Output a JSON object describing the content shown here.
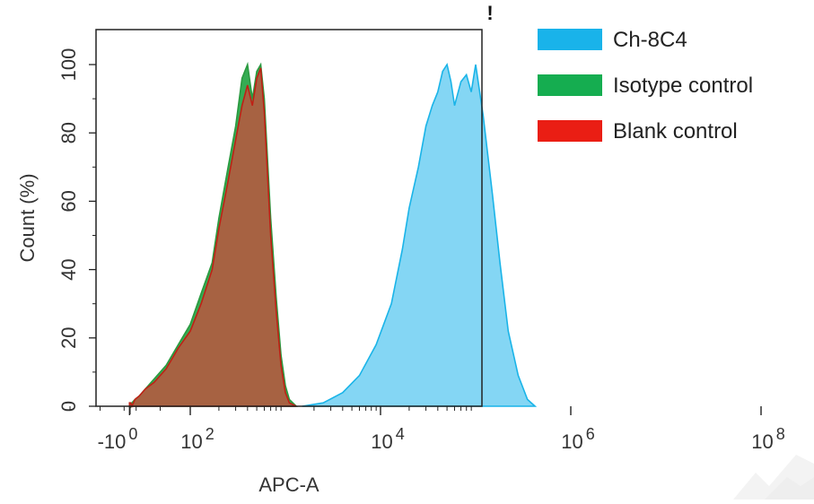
{
  "chart_data": {
    "type": "area",
    "title": "",
    "xlabel": "APC-A",
    "ylabel": "Count (%)",
    "x_scale": "log",
    "xlim": [
      -1,
      100000000
    ],
    "ylim": [
      0,
      105
    ],
    "x_tick_labels": [
      {
        "base": "-10",
        "exp": "0",
        "value": -1
      },
      {
        "base": "10",
        "exp": "2",
        "value": 100
      },
      {
        "base": "10",
        "exp": "4",
        "value": 10000
      },
      {
        "base": "10",
        "exp": "6",
        "value": 1000000
      },
      {
        "base": "10",
        "exp": "8",
        "value": 100000000
      }
    ],
    "y_ticks": [
      0,
      20,
      40,
      60,
      80,
      100
    ],
    "y_tick_labels": [
      "0",
      "20",
      "40",
      "60",
      "80",
      "100"
    ],
    "legend_position": "right",
    "grid": false,
    "corner_mark": "!",
    "series": [
      {
        "name": "Ch-8C4",
        "color": "#1ab4e8",
        "fill": "#7dd4f3",
        "points": [
          [
            1500,
            0
          ],
          [
            2500,
            1
          ],
          [
            4000,
            4
          ],
          [
            6000,
            9
          ],
          [
            9000,
            18
          ],
          [
            13000,
            30
          ],
          [
            17000,
            46
          ],
          [
            20000,
            58
          ],
          [
            25000,
            70
          ],
          [
            30000,
            82
          ],
          [
            35000,
            88
          ],
          [
            40000,
            92
          ],
          [
            45000,
            98
          ],
          [
            50000,
            100
          ],
          [
            55000,
            95
          ],
          [
            60000,
            88
          ],
          [
            70000,
            95
          ],
          [
            80000,
            97
          ],
          [
            90000,
            92
          ],
          [
            100000,
            100
          ],
          [
            120000,
            85
          ],
          [
            150000,
            62
          ],
          [
            180000,
            42
          ],
          [
            220000,
            22
          ],
          [
            280000,
            9
          ],
          [
            350000,
            2
          ],
          [
            420000,
            0
          ]
        ]
      },
      {
        "name": "Isotype control",
        "color": "#2a9a40",
        "fill": "#2aa84a",
        "points": [
          [
            -1,
            1
          ],
          [
            1,
            0
          ],
          [
            3,
            1
          ],
          [
            8,
            2
          ],
          [
            15,
            3
          ],
          [
            25,
            5
          ],
          [
            40,
            8
          ],
          [
            60,
            12
          ],
          [
            80,
            18
          ],
          [
            100,
            24
          ],
          [
            130,
            33
          ],
          [
            170,
            42
          ],
          [
            200,
            55
          ],
          [
            250,
            70
          ],
          [
            300,
            82
          ],
          [
            350,
            96
          ],
          [
            400,
            100
          ],
          [
            450,
            90
          ],
          [
            500,
            98
          ],
          [
            550,
            100
          ],
          [
            600,
            90
          ],
          [
            700,
            55
          ],
          [
            800,
            32
          ],
          [
            900,
            15
          ],
          [
            1000,
            6
          ],
          [
            1100,
            2
          ],
          [
            1300,
            0
          ]
        ]
      },
      {
        "name": "Blank control",
        "color": "#c02015",
        "fill": "#b45a40",
        "points": [
          [
            -1,
            1
          ],
          [
            1,
            1
          ],
          [
            3,
            0
          ],
          [
            8,
            2
          ],
          [
            15,
            3
          ],
          [
            25,
            5
          ],
          [
            40,
            7
          ],
          [
            60,
            11
          ],
          [
            80,
            17
          ],
          [
            100,
            22
          ],
          [
            130,
            30
          ],
          [
            170,
            40
          ],
          [
            200,
            52
          ],
          [
            250,
            66
          ],
          [
            300,
            78
          ],
          [
            350,
            88
          ],
          [
            400,
            94
          ],
          [
            450,
            88
          ],
          [
            500,
            96
          ],
          [
            550,
            99
          ],
          [
            600,
            86
          ],
          [
            700,
            50
          ],
          [
            800,
            28
          ],
          [
            900,
            12
          ],
          [
            1000,
            4
          ],
          [
            1100,
            1
          ],
          [
            1300,
            0
          ]
        ]
      }
    ]
  }
}
